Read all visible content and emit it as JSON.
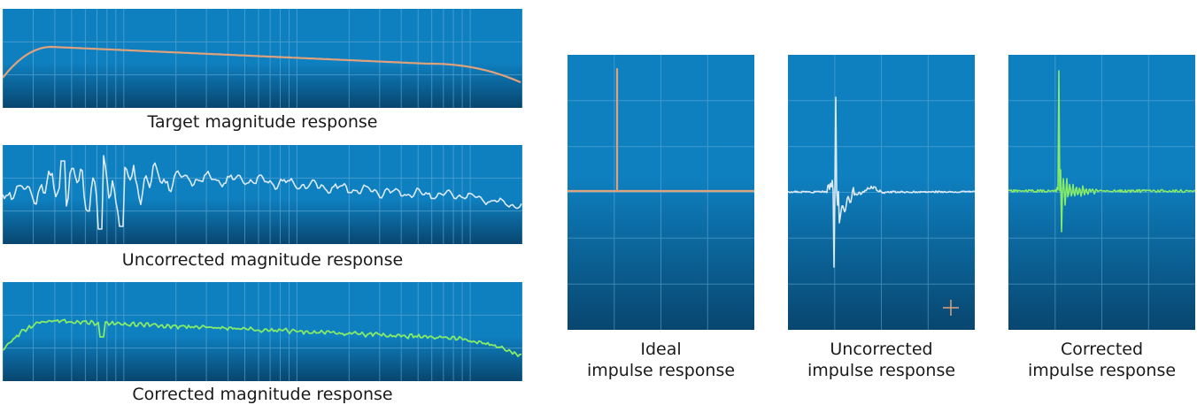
{
  "colors": {
    "panel_top": "#0e7fbf",
    "panel_bottom": "#08466f",
    "grid": "#6fb4dc",
    "target_trace": "#e0a27a",
    "uncorrected_trace": "#dbeaf6",
    "corrected_trace": "#86ec68"
  },
  "magnitude_panels": [
    {
      "id": "target",
      "caption": "Target magnitude response",
      "trace_color": "target_trace",
      "icon": ""
    },
    {
      "id": "uncorrected",
      "caption": "Uncorrected magnitude response",
      "trace_color": "uncorrected_trace",
      "icon": ""
    },
    {
      "id": "corrected",
      "caption": "Corrected magnitude response",
      "trace_color": "corrected_trace",
      "icon": ""
    }
  ],
  "impulse_panels": [
    {
      "id": "ideal",
      "caption_line1": "Ideal",
      "caption_line2": "impulse response",
      "trace_color": "target_trace",
      "icon": ""
    },
    {
      "id": "uncorrected",
      "caption_line1": "Uncorrected",
      "caption_line2": "impulse response",
      "trace_color": "uncorrected_trace",
      "icon": "plus-icon"
    },
    {
      "id": "corrected",
      "caption_line1": "Corrected",
      "caption_line2": "impulse response",
      "trace_color": "corrected_trace",
      "icon": ""
    }
  ]
}
